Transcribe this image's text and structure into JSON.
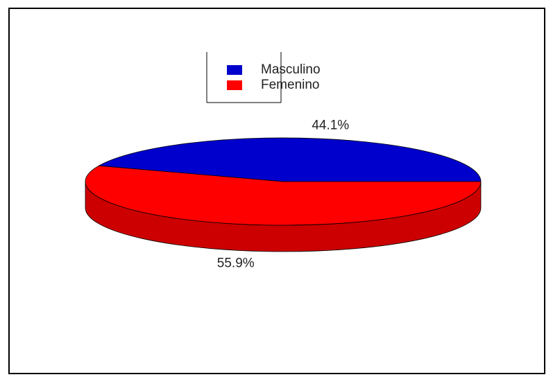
{
  "chart_data": {
    "type": "pie3d",
    "categories": [
      "Masculino",
      "Femenino"
    ],
    "values": [
      44.1,
      55.9
    ],
    "value_labels": [
      "44.1%",
      "55.9%"
    ],
    "colors": [
      "#0000cc",
      "#ff0000"
    ],
    "side_color": "#cc0000",
    "legend": "top"
  }
}
